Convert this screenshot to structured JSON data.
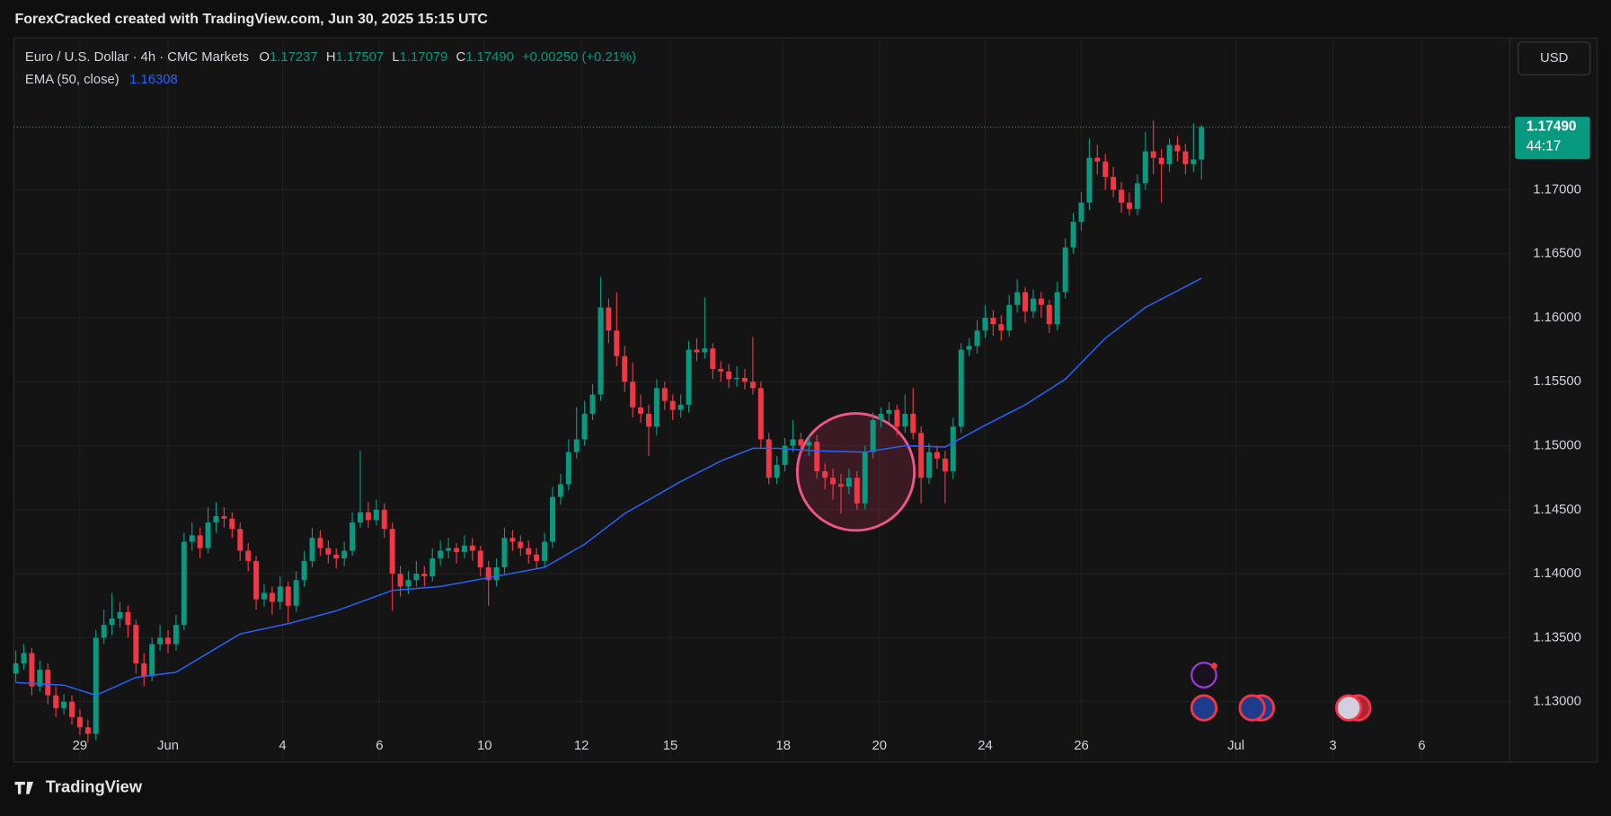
{
  "header": {
    "title": "ForexCracked created with TradingView.com, Jun 30, 2025 15:15 UTC"
  },
  "legend": {
    "symbol": "Euro / U.S. Dollar · 4h · CMC Markets",
    "open_label": "O",
    "open": "1.17237",
    "high_label": "H",
    "high": "1.17507",
    "low_label": "L",
    "low": "1.17079",
    "close_label": "C",
    "close": "1.17490",
    "change": "+0.00250 (+0.21%)",
    "ema_name": "EMA (50, close)"
  },
  "currency": "USD",
  "footer": {
    "brand": "TradingView"
  },
  "chart_data": {
    "type": "candlestick",
    "up_color": "#089981",
    "down_color": "#f23645",
    "xlim": [
      -0.25,
      186.5
    ],
    "ylim": [
      1.12527,
      1.18186
    ],
    "grid": true,
    "xticks": [
      {
        "value": 8,
        "label": "29"
      },
      {
        "value": 19,
        "label": "Jun"
      },
      {
        "value": 33.3,
        "label": "4"
      },
      {
        "value": 45.4,
        "label": "6"
      },
      {
        "value": 58.5,
        "label": "10"
      },
      {
        "value": 70.6,
        "label": "12"
      },
      {
        "value": 81.7,
        "label": "15"
      },
      {
        "value": 95.8,
        "label": "18"
      },
      {
        "value": 107.8,
        "label": "20"
      },
      {
        "value": 121,
        "label": "24"
      },
      {
        "value": 133,
        "label": "26"
      },
      {
        "value": 152.3,
        "label": "Jul"
      },
      {
        "value": 164.4,
        "label": "3"
      },
      {
        "value": 175.5,
        "label": "6"
      }
    ],
    "yticks": [
      {
        "value": 1.13,
        "label": "1.13000"
      },
      {
        "value": 1.135,
        "label": "1.13500"
      },
      {
        "value": 1.14,
        "label": "1.14000"
      },
      {
        "value": 1.145,
        "label": "1.14500"
      },
      {
        "value": 1.15,
        "label": "1.15000"
      },
      {
        "value": 1.155,
        "label": "1.15500"
      },
      {
        "value": 1.16,
        "label": "1.16000"
      },
      {
        "value": 1.165,
        "label": "1.16500"
      },
      {
        "value": 1.17,
        "label": "1.17000"
      }
    ],
    "last_price": {
      "value": 1.1749,
      "label": "1.17490",
      "countdown": "44:17",
      "color": "#089981"
    },
    "ema": {
      "color": "#2962ff",
      "x": [
        0,
        6,
        10,
        15,
        20,
        28,
        34,
        40,
        47,
        53,
        60,
        66,
        71,
        76,
        83,
        88,
        92,
        95,
        100,
        106,
        111,
        116,
        121,
        126,
        131,
        136,
        141,
        148
      ],
      "values": [
        1.1315,
        1.1313,
        1.1305,
        1.1319,
        1.1323,
        1.1353,
        1.1361,
        1.1371,
        1.1387,
        1.139,
        1.1398,
        1.1405,
        1.1423,
        1.1447,
        1.1472,
        1.1488,
        1.1498,
        1.1498,
        1.1496,
        1.1495,
        1.15,
        1.1499,
        1.1516,
        1.1532,
        1.1552,
        1.1584,
        1.1608,
        1.16308
      ]
    },
    "candles": [
      [
        1.1322,
        1.134,
        1.1315,
        1.133
      ],
      [
        1.133,
        1.1345,
        1.1325,
        1.1338
      ],
      [
        1.1338,
        1.1342,
        1.1305,
        1.1312
      ],
      [
        1.1312,
        1.1332,
        1.1308,
        1.1325
      ],
      [
        1.1325,
        1.133,
        1.1298,
        1.1305
      ],
      [
        1.1305,
        1.1312,
        1.1288,
        1.1295
      ],
      [
        1.1295,
        1.1306,
        1.129,
        1.13
      ],
      [
        1.13,
        1.1305,
        1.1282,
        1.1288
      ],
      [
        1.1288,
        1.1294,
        1.1274,
        1.128
      ],
      [
        1.128,
        1.1286,
        1.1268,
        1.1275
      ],
      [
        1.1275,
        1.1356,
        1.127,
        1.135
      ],
      [
        1.135,
        1.1372,
        1.1345,
        1.136
      ],
      [
        1.136,
        1.1385,
        1.1352,
        1.1365
      ],
      [
        1.1365,
        1.1378,
        1.1358,
        1.137
      ],
      [
        1.137,
        1.1375,
        1.135,
        1.136
      ],
      [
        1.136,
        1.1364,
        1.1322,
        1.133
      ],
      [
        1.133,
        1.1338,
        1.1312,
        1.132
      ],
      [
        1.132,
        1.135,
        1.1316,
        1.1345
      ],
      [
        1.1345,
        1.136,
        1.134,
        1.135
      ],
      [
        1.135,
        1.1356,
        1.1338,
        1.1345
      ],
      [
        1.1345,
        1.1368,
        1.134,
        1.136
      ],
      [
        1.136,
        1.1432,
        1.1356,
        1.1425
      ],
      [
        1.1425,
        1.144,
        1.1418,
        1.143
      ],
      [
        1.143,
        1.1436,
        1.1412,
        1.142
      ],
      [
        1.142,
        1.1452,
        1.1416,
        1.144
      ],
      [
        1.144,
        1.1456,
        1.1432,
        1.1445
      ],
      [
        1.1445,
        1.1452,
        1.1436,
        1.1443
      ],
      [
        1.1443,
        1.1448,
        1.1428,
        1.1435
      ],
      [
        1.1435,
        1.144,
        1.141,
        1.1418
      ],
      [
        1.1418,
        1.1424,
        1.1402,
        1.141
      ],
      [
        1.141,
        1.1414,
        1.1372,
        1.138
      ],
      [
        1.138,
        1.1392,
        1.1374,
        1.1385
      ],
      [
        1.1385,
        1.139,
        1.1368,
        1.1378
      ],
      [
        1.1378,
        1.1398,
        1.1372,
        1.139
      ],
      [
        1.139,
        1.1394,
        1.1362,
        1.1375
      ],
      [
        1.1375,
        1.1402,
        1.137,
        1.1395
      ],
      [
        1.1395,
        1.1418,
        1.139,
        1.141
      ],
      [
        1.141,
        1.1436,
        1.1405,
        1.1428
      ],
      [
        1.1428,
        1.1434,
        1.1414,
        1.142
      ],
      [
        1.142,
        1.1426,
        1.1408,
        1.1415
      ],
      [
        1.1415,
        1.142,
        1.1404,
        1.1412
      ],
      [
        1.1412,
        1.1425,
        1.1406,
        1.1418
      ],
      [
        1.1418,
        1.1448,
        1.1414,
        1.144
      ],
      [
        1.144,
        1.1496,
        1.1436,
        1.1448
      ],
      [
        1.1448,
        1.1456,
        1.1436,
        1.1442
      ],
      [
        1.1442,
        1.1458,
        1.1438,
        1.145
      ],
      [
        1.145,
        1.1455,
        1.1428,
        1.1435
      ],
      [
        1.1435,
        1.144,
        1.1371,
        1.14
      ],
      [
        1.14,
        1.1406,
        1.1382,
        1.139
      ],
      [
        1.139,
        1.1402,
        1.1384,
        1.1395
      ],
      [
        1.1395,
        1.141,
        1.139,
        1.14
      ],
      [
        1.14,
        1.1406,
        1.139,
        1.1398
      ],
      [
        1.1398,
        1.142,
        1.1394,
        1.1412
      ],
      [
        1.1412,
        1.1426,
        1.1406,
        1.1418
      ],
      [
        1.1418,
        1.1428,
        1.1412,
        1.142
      ],
      [
        1.142,
        1.1424,
        1.1408,
        1.1417
      ],
      [
        1.1417,
        1.143,
        1.1412,
        1.1422
      ],
      [
        1.1422,
        1.1428,
        1.141,
        1.1418
      ],
      [
        1.1418,
        1.1422,
        1.1398,
        1.1405
      ],
      [
        1.1405,
        1.141,
        1.1375,
        1.1395
      ],
      [
        1.1395,
        1.1412,
        1.139,
        1.1405
      ],
      [
        1.1405,
        1.1436,
        1.14,
        1.1428
      ],
      [
        1.1428,
        1.1434,
        1.1418,
        1.1425
      ],
      [
        1.1425,
        1.143,
        1.1414,
        1.142
      ],
      [
        1.142,
        1.1426,
        1.1408,
        1.1415
      ],
      [
        1.1415,
        1.142,
        1.1404,
        1.141
      ],
      [
        1.141,
        1.1432,
        1.1405,
        1.1425
      ],
      [
        1.1425,
        1.1468,
        1.142,
        1.146
      ],
      [
        1.146,
        1.1478,
        1.1454,
        1.147
      ],
      [
        1.147,
        1.1505,
        1.1465,
        1.1495
      ],
      [
        1.1495,
        1.153,
        1.149,
        1.1505
      ],
      [
        1.1505,
        1.1535,
        1.15,
        1.1525
      ],
      [
        1.1525,
        1.1548,
        1.152,
        1.154
      ],
      [
        1.154,
        1.1632,
        1.1535,
        1.1608
      ],
      [
        1.1608,
        1.1615,
        1.158,
        1.159
      ],
      [
        1.159,
        1.162,
        1.1562,
        1.157
      ],
      [
        1.157,
        1.1578,
        1.1542,
        1.155
      ],
      [
        1.155,
        1.1565,
        1.1522,
        1.153
      ],
      [
        1.153,
        1.154,
        1.1518,
        1.1525
      ],
      [
        1.1525,
        1.1532,
        1.1492,
        1.1515
      ],
      [
        1.1515,
        1.1552,
        1.1508,
        1.1545
      ],
      [
        1.1545,
        1.155,
        1.1528,
        1.1535
      ],
      [
        1.1535,
        1.154,
        1.152,
        1.1528
      ],
      [
        1.1528,
        1.154,
        1.1522,
        1.1532
      ],
      [
        1.1532,
        1.1582,
        1.1526,
        1.1575
      ],
      [
        1.1575,
        1.1584,
        1.1566,
        1.1573
      ],
      [
        1.1573,
        1.1616,
        1.1568,
        1.1576
      ],
      [
        1.1576,
        1.158,
        1.1552,
        1.156
      ],
      [
        1.156,
        1.1566,
        1.155,
        1.1558
      ],
      [
        1.1558,
        1.1564,
        1.1545,
        1.1552
      ],
      [
        1.1552,
        1.1562,
        1.1546,
        1.1553
      ],
      [
        1.1553,
        1.156,
        1.1544,
        1.155
      ],
      [
        1.155,
        1.1585,
        1.154,
        1.1545
      ],
      [
        1.1545,
        1.155,
        1.1498,
        1.1505
      ],
      [
        1.1505,
        1.151,
        1.147,
        1.1475
      ],
      [
        1.1475,
        1.1492,
        1.147,
        1.1485
      ],
      [
        1.1485,
        1.1506,
        1.148,
        1.15
      ],
      [
        1.15,
        1.152,
        1.1495,
        1.1505
      ],
      [
        1.1505,
        1.151,
        1.1494,
        1.15
      ],
      [
        1.15,
        1.1508,
        1.1492,
        1.1503
      ],
      [
        1.1503,
        1.1508,
        1.1474,
        1.148
      ],
      [
        1.148,
        1.1486,
        1.1466,
        1.1475
      ],
      [
        1.1475,
        1.1482,
        1.1458,
        1.147
      ],
      [
        1.147,
        1.1478,
        1.1447,
        1.1468
      ],
      [
        1.1468,
        1.1482,
        1.1462,
        1.1475
      ],
      [
        1.1475,
        1.148,
        1.145,
        1.1455
      ],
      [
        1.1455,
        1.15,
        1.145,
        1.1495
      ],
      [
        1.1495,
        1.1526,
        1.149,
        1.152
      ],
      [
        1.152,
        1.153,
        1.1514,
        1.1525
      ],
      [
        1.1525,
        1.1534,
        1.1518,
        1.1528
      ],
      [
        1.1528,
        1.1532,
        1.1508,
        1.1515
      ],
      [
        1.1515,
        1.154,
        1.151,
        1.1525
      ],
      [
        1.1525,
        1.1545,
        1.1505,
        1.151
      ],
      [
        1.151,
        1.1515,
        1.1455,
        1.1475
      ],
      [
        1.1475,
        1.1502,
        1.147,
        1.1495
      ],
      [
        1.1495,
        1.15,
        1.1482,
        1.149
      ],
      [
        1.149,
        1.1496,
        1.1455,
        1.148
      ],
      [
        1.148,
        1.1522,
        1.1474,
        1.1515
      ],
      [
        1.1515,
        1.158,
        1.151,
        1.1575
      ],
      [
        1.1575,
        1.1584,
        1.157,
        1.1578
      ],
      [
        1.1578,
        1.1598,
        1.1572,
        1.159
      ],
      [
        1.159,
        1.161,
        1.1584,
        1.16
      ],
      [
        1.16,
        1.1606,
        1.1586,
        1.1595
      ],
      [
        1.1595,
        1.1602,
        1.1582,
        1.159
      ],
      [
        1.159,
        1.1618,
        1.1585,
        1.161
      ],
      [
        1.161,
        1.163,
        1.1604,
        1.162
      ],
      [
        1.162,
        1.1624,
        1.1596,
        1.1605
      ],
      [
        1.1605,
        1.1622,
        1.16,
        1.1615
      ],
      [
        1.1615,
        1.162,
        1.16,
        1.161
      ],
      [
        1.161,
        1.1614,
        1.1588,
        1.1595
      ],
      [
        1.1595,
        1.1628,
        1.159,
        1.162
      ],
      [
        1.162,
        1.1662,
        1.1615,
        1.1655
      ],
      [
        1.1655,
        1.1682,
        1.165,
        1.1675
      ],
      [
        1.1675,
        1.1698,
        1.1668,
        1.169
      ],
      [
        1.169,
        1.174,
        1.1684,
        1.1725
      ],
      [
        1.1725,
        1.1735,
        1.1712,
        1.1722
      ],
      [
        1.1722,
        1.1728,
        1.17,
        1.171
      ],
      [
        1.171,
        1.1718,
        1.1694,
        1.17
      ],
      [
        1.17,
        1.1706,
        1.1682,
        1.169
      ],
      [
        1.169,
        1.1698,
        1.168,
        1.1685
      ],
      [
        1.1685,
        1.1712,
        1.168,
        1.1705
      ],
      [
        1.1705,
        1.1745,
        1.17,
        1.173
      ],
      [
        1.173,
        1.1754,
        1.1712,
        1.1725
      ],
      [
        1.1725,
        1.1732,
        1.169,
        1.172
      ],
      [
        1.172,
        1.174,
        1.1714,
        1.1735
      ],
      [
        1.1735,
        1.1742,
        1.1722,
        1.173
      ],
      [
        1.173,
        1.1736,
        1.1712,
        1.172
      ],
      [
        1.172,
        1.1752,
        1.1714,
        1.17237
      ],
      [
        1.17237,
        1.17507,
        1.17079,
        1.1749
      ]
    ]
  }
}
